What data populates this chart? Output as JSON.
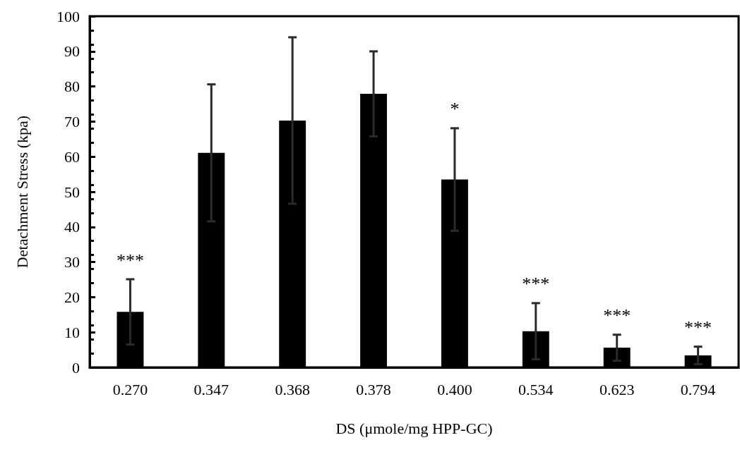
{
  "chart_data": {
    "type": "bar",
    "xlabel": "DS (μmole/mg HPP-GC)",
    "ylabel": "Detachment Stress (kpa)",
    "categories": [
      "0.270",
      "0.347",
      "0.368",
      "0.378",
      "0.400",
      "0.534",
      "0.623",
      "0.794"
    ],
    "values": [
      15.8,
      61.1,
      70.3,
      77.9,
      53.5,
      10.3,
      5.6,
      3.4
    ],
    "errors": [
      9.3,
      19.5,
      23.7,
      12.1,
      14.6,
      8,
      3.7,
      2.5
    ],
    "color": "#000000",
    "ylim": [
      0,
      100
    ],
    "yticks": [
      0,
      10,
      20,
      30,
      40,
      50,
      60,
      70,
      80,
      90,
      100
    ],
    "grid": false,
    "annotations": [
      {
        "text": "***",
        "x": "0.270",
        "y": 25.1
      },
      {
        "text": "*",
        "x": "0.400",
        "y": 68.1
      },
      {
        "text": "***",
        "x": "0.534",
        "y": 18.3
      },
      {
        "text": "***",
        "x": "0.623",
        "y": 9.3
      },
      {
        "text": "***",
        "x": "0.794",
        "y": 5.9
      }
    ]
  }
}
